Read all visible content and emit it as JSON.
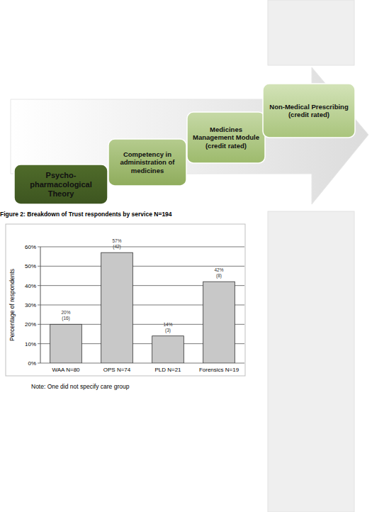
{
  "diagram": {
    "steps": [
      {
        "lines": [
          "Psycho-",
          "pharmacological",
          "Theory"
        ]
      },
      {
        "lines": [
          "Competency in",
          "administration of",
          "medicines"
        ]
      },
      {
        "lines": [
          "Medicines",
          "Management Module",
          "(credit rated)"
        ]
      },
      {
        "lines": [
          "Non-Medical Prescribing",
          "(credit rated)"
        ]
      }
    ]
  },
  "chart_data": {
    "type": "bar",
    "title": "Figure 2: Breakdown of Trust respondents by service N=194",
    "categories": [
      "WAA N=80",
      "OPS N=74",
      "PLD N=21",
      "Forensics N=19"
    ],
    "values": [
      20,
      57,
      14,
      42
    ],
    "value_labels": [
      "20%",
      "57%",
      "14%",
      "42%"
    ],
    "count_labels": [
      "(16)",
      "(42)",
      "(3)",
      "(8)"
    ],
    "color": "#c8c8c8",
    "y_label": "Percentage of respondents",
    "ylim": [
      0,
      60
    ],
    "yticks": [
      {
        "value": 0,
        "label": "0%"
      },
      {
        "value": 10,
        "label": "10%"
      },
      {
        "value": 20,
        "label": "20%"
      },
      {
        "value": 30,
        "label": "30%"
      },
      {
        "value": 40,
        "label": "40%"
      },
      {
        "value": 50,
        "label": "50%"
      },
      {
        "value": 60,
        "label": "60%"
      }
    ],
    "grid": true,
    "data_labels": true
  },
  "note": "Note: One did not specify care group"
}
